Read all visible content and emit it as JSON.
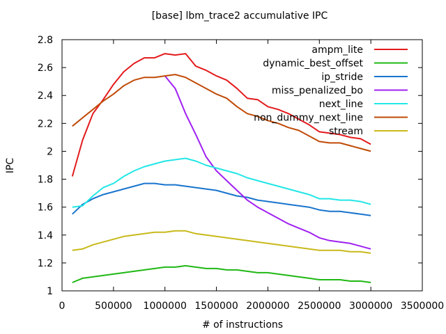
{
  "chart_data": {
    "type": "line",
    "title": "[base] lbm_trace2 accumulative IPC",
    "xlabel": "# of instructions",
    "ylabel": "IPC",
    "xlim": [
      0,
      3500000
    ],
    "ylim": [
      1,
      2.8
    ],
    "xticks": [
      0,
      500000,
      1000000,
      1500000,
      2000000,
      2500000,
      3000000,
      3500000
    ],
    "xtick_labels": [
      "0",
      "500000",
      "1000000",
      "1500000",
      "2000000",
      "2500000",
      "3000000",
      "3500000"
    ],
    "yticks": [
      1,
      1.2,
      1.4,
      1.6,
      1.8,
      2,
      2.2,
      2.4,
      2.6,
      2.8
    ],
    "ytick_labels": [
      "1",
      "1.2",
      "1.4",
      "1.6",
      "1.8",
      "2",
      "2.2",
      "2.4",
      "2.6",
      "2.8"
    ],
    "grid": false,
    "legend_position": "top-right",
    "x": [
      100000,
      200000,
      300000,
      400000,
      500000,
      600000,
      700000,
      800000,
      900000,
      1000000,
      1100000,
      1200000,
      1300000,
      1400000,
      1500000,
      1600000,
      1700000,
      1800000,
      1900000,
      2000000,
      2100000,
      2200000,
      2300000,
      2400000,
      2500000,
      2600000,
      2700000,
      2800000,
      2900000,
      3000000
    ],
    "series": [
      {
        "name": "ampm_lite",
        "color": "#e31a1c",
        "values": [
          1.82,
          2.08,
          2.27,
          2.37,
          2.48,
          2.57,
          2.63,
          2.67,
          2.67,
          2.7,
          2.69,
          2.7,
          2.61,
          2.58,
          2.54,
          2.51,
          2.45,
          2.38,
          2.37,
          2.32,
          2.3,
          2.27,
          2.23,
          2.19,
          2.14,
          2.13,
          2.12,
          2.1,
          2.09,
          2.05
        ]
      },
      {
        "name": "dynamic_best_offset",
        "color": "#1fb814",
        "values": [
          1.06,
          1.09,
          1.1,
          1.11,
          1.12,
          1.13,
          1.14,
          1.15,
          1.16,
          1.17,
          1.17,
          1.18,
          1.17,
          1.16,
          1.16,
          1.15,
          1.15,
          1.14,
          1.13,
          1.13,
          1.12,
          1.11,
          1.1,
          1.09,
          1.08,
          1.08,
          1.08,
          1.07,
          1.07,
          1.06
        ]
      },
      {
        "name": "ip_stride",
        "color": "#1874cd",
        "values": [
          1.55,
          1.62,
          1.66,
          1.69,
          1.71,
          1.73,
          1.75,
          1.77,
          1.77,
          1.76,
          1.76,
          1.75,
          1.74,
          1.73,
          1.72,
          1.7,
          1.68,
          1.67,
          1.65,
          1.64,
          1.63,
          1.62,
          1.61,
          1.6,
          1.58,
          1.57,
          1.57,
          1.56,
          1.55,
          1.54
        ]
      },
      {
        "name": "miss_penalized_bo",
        "color": "#a020f0",
        "values": [
          null,
          null,
          null,
          null,
          null,
          null,
          null,
          null,
          null,
          2.54,
          2.45,
          2.27,
          2.12,
          1.96,
          1.86,
          1.79,
          1.72,
          1.65,
          1.6,
          1.56,
          1.52,
          1.48,
          1.45,
          1.42,
          1.38,
          1.36,
          1.35,
          1.34,
          1.32,
          1.3
        ]
      },
      {
        "name": "next_line",
        "color": "#22e6e6",
        "values": [
          1.6,
          1.61,
          1.68,
          1.74,
          1.77,
          1.82,
          1.86,
          1.89,
          1.91,
          1.93,
          1.94,
          1.95,
          1.93,
          1.9,
          1.88,
          1.86,
          1.84,
          1.81,
          1.79,
          1.77,
          1.75,
          1.73,
          1.71,
          1.69,
          1.66,
          1.66,
          1.65,
          1.65,
          1.64,
          1.62
        ]
      },
      {
        "name": "non_dummy_next_line",
        "color": "#c04a07",
        "values": [
          2.18,
          2.24,
          2.3,
          2.36,
          2.41,
          2.47,
          2.51,
          2.53,
          2.53,
          2.54,
          2.55,
          2.53,
          2.49,
          2.45,
          2.41,
          2.38,
          2.32,
          2.27,
          2.25,
          2.22,
          2.2,
          2.17,
          2.15,
          2.11,
          2.07,
          2.06,
          2.06,
          2.04,
          2.02,
          2.0
        ]
      },
      {
        "name": "stream",
        "color": "#c8b91a",
        "values": [
          1.29,
          1.3,
          1.33,
          1.35,
          1.37,
          1.39,
          1.4,
          1.41,
          1.42,
          1.42,
          1.43,
          1.43,
          1.41,
          1.4,
          1.39,
          1.38,
          1.37,
          1.36,
          1.35,
          1.34,
          1.33,
          1.32,
          1.31,
          1.3,
          1.29,
          1.29,
          1.29,
          1.28,
          1.28,
          1.27
        ]
      }
    ]
  }
}
